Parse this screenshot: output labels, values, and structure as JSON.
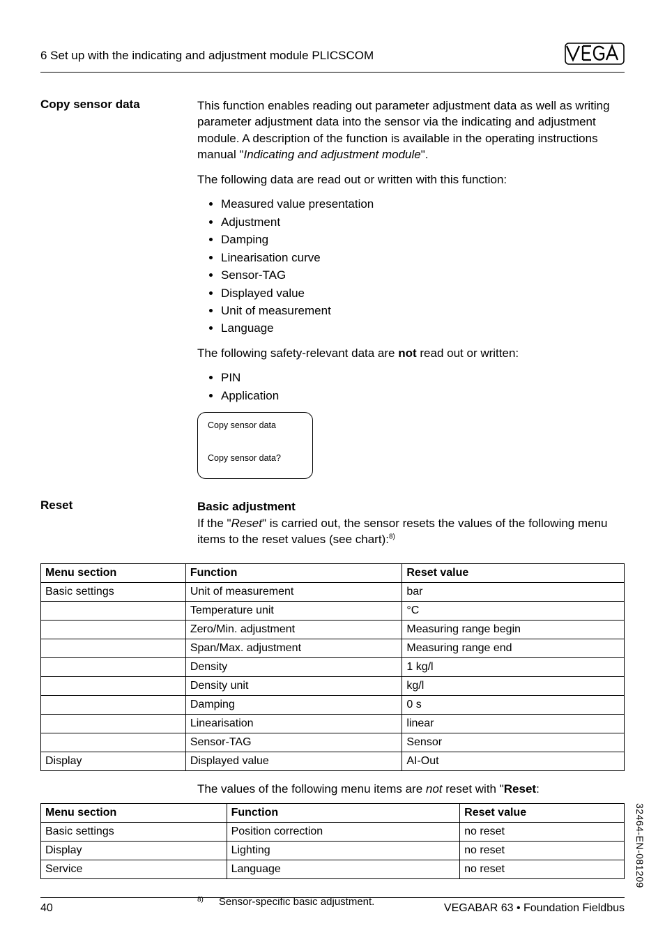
{
  "header": {
    "chapter": "6  Set up with the indicating and adjustment module PLICSCOM"
  },
  "section_copy": {
    "sidehead": "Copy sensor data",
    "para1_a": "This function enables reading out parameter adjustment data as well as writing parameter adjustment data into the sensor via the indicating and adjustment module. A description of the function is available in the operating instructions manual \"",
    "para1_italic": "Indicating and adjustment module",
    "para1_b": "\".",
    "para2": "The following data are read out or written with this function:",
    "bullets1": [
      "Measured value presentation",
      "Adjustment",
      "Damping",
      "Linearisation curve",
      "Sensor-TAG",
      "Displayed value",
      "Unit of measurement",
      "Language"
    ],
    "para3_a": "The following safety-relevant data are ",
    "para3_bold": "not",
    "para3_b": " read out or written:",
    "bullets2": [
      "PIN",
      "Application"
    ],
    "display": {
      "line1": "Copy sensor data",
      "line2": "Copy sensor data?"
    }
  },
  "section_reset": {
    "sidehead": "Reset",
    "subhead": "Basic adjustment",
    "para_a": "If the \"",
    "para_italic": "Reset",
    "para_b": "\" is carried out, the sensor resets the values of the following menu items to the reset values (see chart):",
    "footref": "8)"
  },
  "table1": {
    "headers": [
      "Menu section",
      "Function",
      "Reset value"
    ],
    "rows": [
      [
        "Basic settings",
        "Unit of measurement",
        "bar"
      ],
      [
        "",
        "Temperature unit",
        "°C"
      ],
      [
        "",
        "Zero/Min. adjustment",
        "Measuring range begin"
      ],
      [
        "",
        "Span/Max. adjustment",
        "Measuring range end"
      ],
      [
        "",
        "Density",
        "1 kg/l"
      ],
      [
        "",
        "Density unit",
        "kg/l"
      ],
      [
        "",
        "Damping",
        "0 s"
      ],
      [
        "",
        "Linearisation",
        "linear"
      ],
      [
        "",
        "Sensor-TAG",
        "Sensor"
      ],
      [
        "Display",
        "Displayed value",
        "AI-Out"
      ]
    ]
  },
  "mid_para_a": "The values of the following menu items are ",
  "mid_para_italic": "not",
  "mid_para_b": " reset with \"",
  "mid_para_bold": "Reset",
  "mid_para_c": ":",
  "table2": {
    "headers": [
      "Menu section",
      "Function",
      "Reset value"
    ],
    "rows": [
      [
        "Basic settings",
        "Position correction",
        "no reset"
      ],
      [
        "Display",
        "Lighting",
        "no reset"
      ],
      [
        "Service",
        "Language",
        "no reset"
      ]
    ]
  },
  "footnote": {
    "num": "8)",
    "text": "Sensor-specific basic adjustment."
  },
  "footer": {
    "page": "40",
    "product": "VEGABAR 63 • Foundation Fieldbus"
  },
  "doc_id": "32464-EN-081209",
  "colors": {
    "text": "#000000",
    "bg": "#ffffff",
    "border": "#000000"
  }
}
